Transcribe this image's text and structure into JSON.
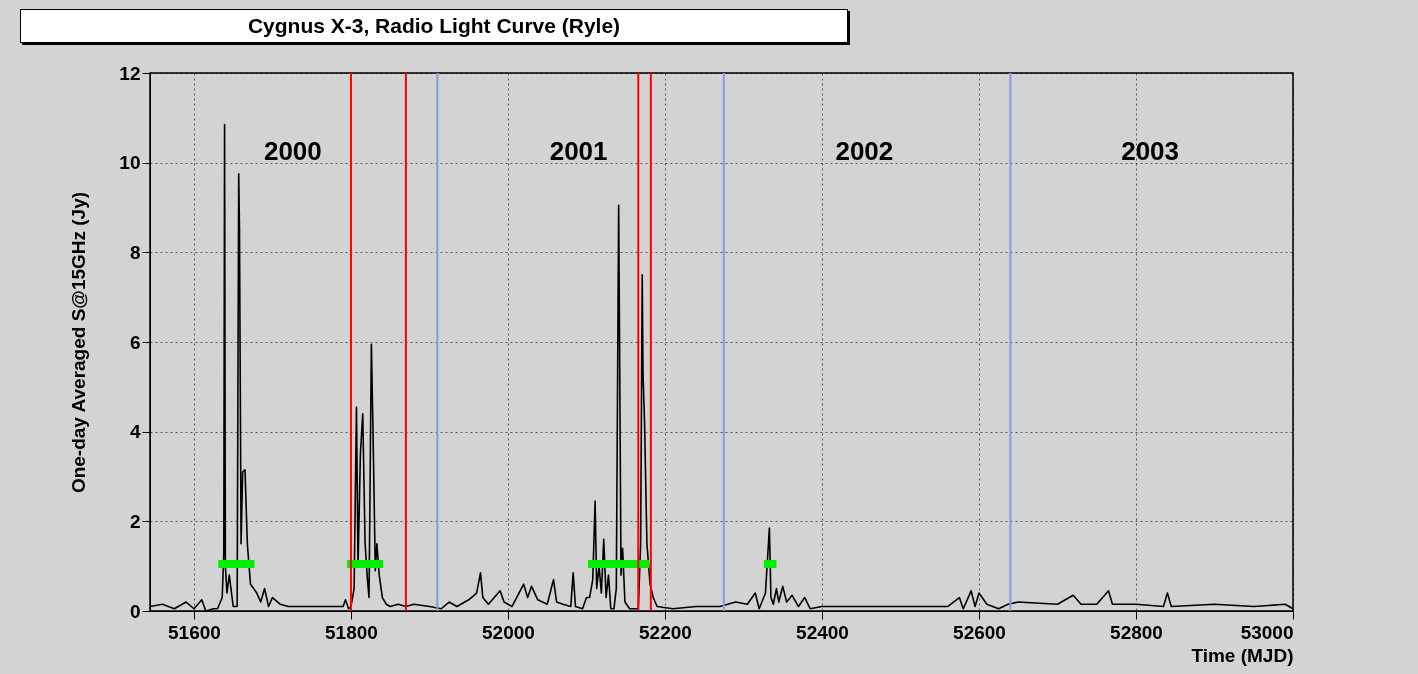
{
  "chart_data": {
    "type": "line",
    "title": "Cygnus X-3, Radio Light Curve (Ryle)",
    "xlabel": "Time (MJD)",
    "ylabel": "One-day Averaged  S@15GHz (Jy)",
    "xlim": [
      51544,
      53000
    ],
    "xticks": [
      51600,
      51800,
      52000,
      52200,
      52400,
      52600,
      52800,
      53000
    ],
    "ylim": [
      0,
      12
    ],
    "yticks": [
      0,
      2,
      4,
      6,
      8,
      10,
      12
    ],
    "grid": true,
    "series": [
      {
        "color": "#000000",
        "x": [
          51544,
          51560,
          51575,
          51590,
          51600,
          51610,
          51615,
          51625,
          51630,
          51636,
          51638,
          51639,
          51640,
          51642,
          51645,
          51650,
          51655,
          51657,
          51658,
          51660,
          51662,
          51665,
          51668,
          51672,
          51680,
          51685,
          51690,
          51695,
          51700,
          51710,
          51720,
          51735,
          51790,
          51793,
          51797,
          51800,
          51804,
          51807,
          51809,
          51812,
          51815,
          51818,
          51821,
          51823,
          51826,
          51828,
          51831,
          51833,
          51836,
          51840,
          51845,
          51850,
          51860,
          51870,
          51880,
          51900,
          51915,
          51925,
          51935,
          51950,
          51960,
          51965,
          51968,
          51975,
          51990,
          51995,
          52005,
          52020,
          52025,
          52030,
          52038,
          52050,
          52058,
          52062,
          52070,
          52080,
          52083,
          52086,
          52095,
          52100,
          52104,
          52108,
          52111,
          52113,
          52116,
          52119,
          52122,
          52125,
          52128,
          52131,
          52135,
          52138,
          52141,
          52142,
          52144,
          52146,
          52149,
          52155,
          52162,
          52166,
          52169,
          52171,
          52172,
          52174,
          52177,
          52181,
          52185,
          52190,
          52210,
          52240,
          52270,
          52290,
          52305,
          52315,
          52320,
          52328,
          52333,
          52335,
          52338,
          52342,
          52345,
          52350,
          52355,
          52362,
          52370,
          52378,
          52385,
          52400,
          52450,
          52500,
          52560,
          52575,
          52580,
          52590,
          52595,
          52600,
          52610,
          52625,
          52637,
          52650,
          52700,
          52720,
          52730,
          52750,
          52765,
          52770,
          52800,
          52835,
          52840,
          52845,
          52900,
          52950,
          52990,
          53000
        ],
        "values": [
          0.1,
          0.15,
          0.05,
          0.2,
          0.05,
          0.25,
          0.0,
          0.05,
          0.05,
          0.3,
          1.3,
          10.85,
          1.0,
          0.4,
          0.8,
          0.1,
          0.1,
          9.75,
          8.5,
          1.5,
          3.1,
          3.15,
          1.5,
          0.6,
          0.4,
          0.2,
          0.5,
          0.1,
          0.3,
          0.15,
          0.1,
          0.1,
          0.1,
          0.25,
          0.05,
          0.1,
          0.5,
          4.55,
          1.0,
          3.5,
          4.4,
          1.5,
          0.7,
          0.3,
          5.95,
          4.1,
          0.9,
          1.5,
          0.8,
          0.3,
          0.15,
          0.1,
          0.15,
          0.1,
          0.15,
          0.1,
          0.05,
          0.2,
          0.1,
          0.25,
          0.4,
          0.85,
          0.3,
          0.15,
          0.45,
          0.2,
          0.1,
          0.6,
          0.3,
          0.55,
          0.25,
          0.15,
          0.7,
          0.2,
          0.15,
          0.1,
          0.85,
          0.1,
          0.05,
          0.3,
          0.3,
          0.7,
          2.45,
          0.5,
          1.0,
          0.4,
          1.6,
          0.3,
          0.8,
          0.05,
          0.05,
          0.5,
          9.05,
          6.4,
          0.8,
          1.4,
          0.2,
          0.05,
          0.05,
          0.05,
          1.5,
          7.5,
          5.3,
          4.2,
          1.5,
          0.6,
          0.3,
          0.1,
          0.05,
          0.1,
          0.1,
          0.2,
          0.15,
          0.4,
          0.05,
          0.4,
          1.85,
          0.3,
          0.15,
          0.5,
          0.2,
          0.55,
          0.2,
          0.35,
          0.1,
          0.3,
          0.05,
          0.1,
          0.1,
          0.1,
          0.1,
          0.3,
          0.05,
          0.45,
          0.1,
          0.4,
          0.15,
          0.05,
          0.15,
          0.2,
          0.15,
          0.35,
          0.15,
          0.15,
          0.45,
          0.15,
          0.15,
          0.1,
          0.4,
          0.1,
          0.15,
          0.1,
          0.15,
          0.05
        ]
      },
      {
        "color": "#00ee00",
        "x": [
          51631,
          51677,
          51678,
          51795,
          51841,
          51842,
          52102,
          52180,
          52181,
          52326,
          52342
        ],
        "values": [
          1.05,
          1.05,
          null,
          1.05,
          1.05,
          null,
          1.05,
          1.05,
          null,
          1.05,
          1.05
        ]
      }
    ],
    "ref_lines": [
      {
        "axis": "x",
        "value": 51800,
        "color": "#ff0000"
      },
      {
        "axis": "x",
        "value": 51870,
        "color": "#ff0000"
      },
      {
        "axis": "x",
        "value": 52166,
        "color": "#ff0000"
      },
      {
        "axis": "x",
        "value": 52182,
        "color": "#ff0000"
      },
      {
        "axis": "x",
        "value": 51910,
        "color": "#7f9fdf"
      },
      {
        "axis": "x",
        "value": 52275,
        "color": "#7f9fdf"
      },
      {
        "axis": "x",
        "value": 52640,
        "color": "#7f9fdf"
      }
    ],
    "annotations": [
      "2000",
      "2001",
      "2002",
      "2003"
    ]
  }
}
